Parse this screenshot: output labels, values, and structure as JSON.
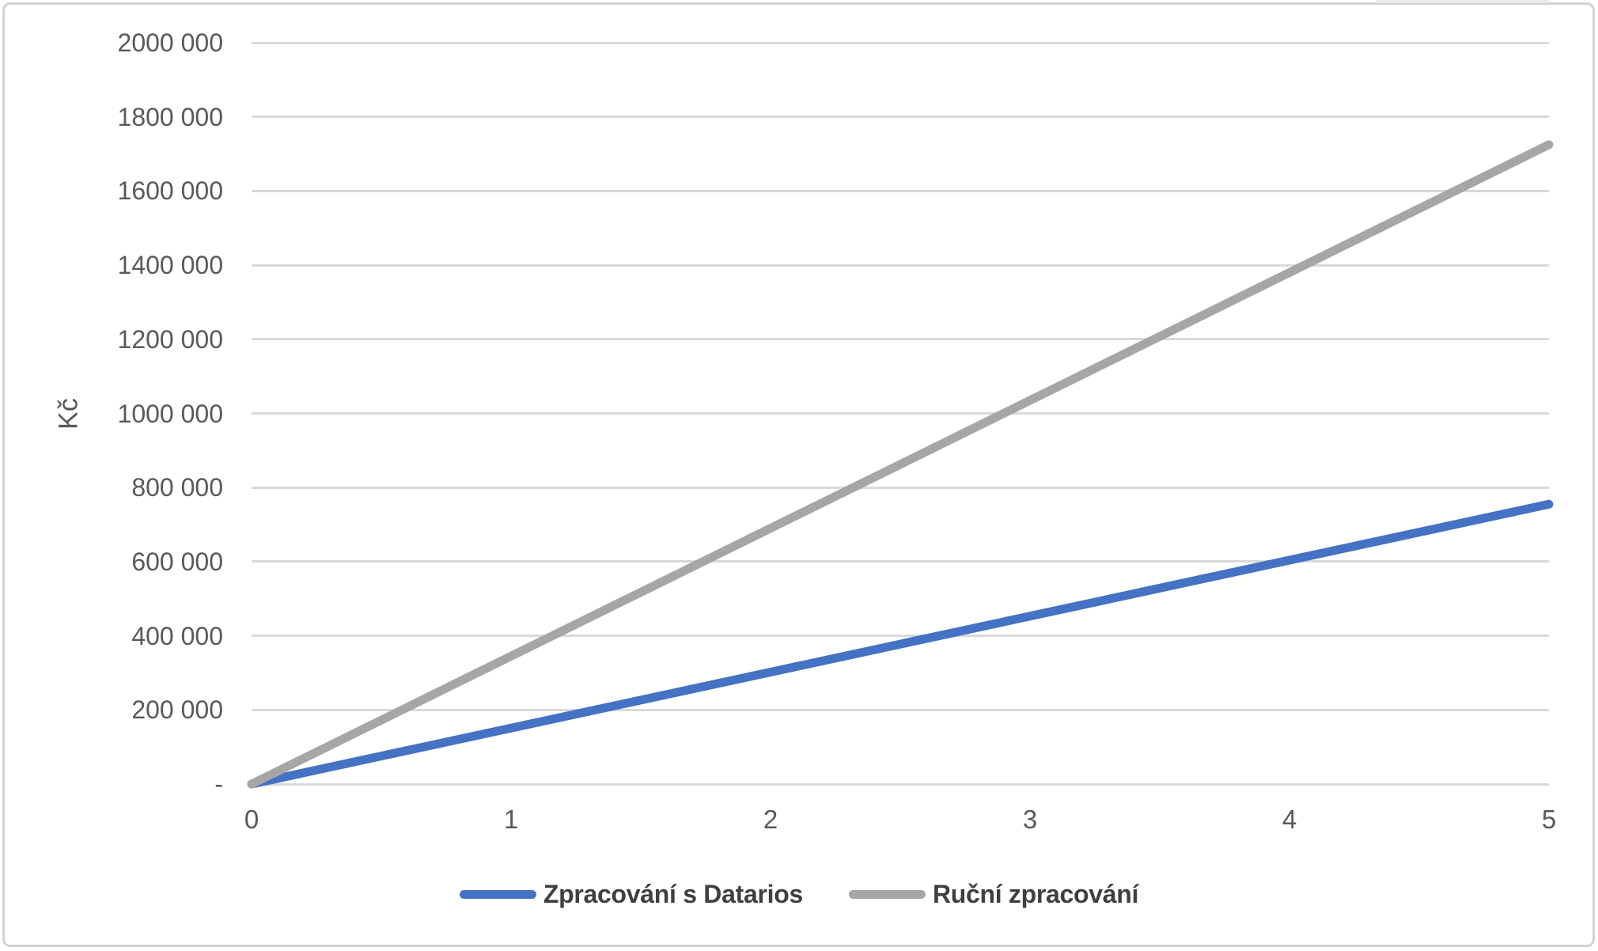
{
  "chart_data": {
    "type": "line",
    "title": "",
    "xlabel": "",
    "ylabel": "Kč",
    "xlim": [
      0,
      5
    ],
    "ylim": [
      0,
      2000000
    ],
    "grid": "horizontal-only",
    "legend_position": "bottom-center",
    "x": [
      0,
      1,
      2,
      3,
      4,
      5
    ],
    "series": [
      {
        "name": "Zpracování s Datarios",
        "color": "#4472C4",
        "values": [
          0,
          151000,
          302000,
          453000,
          604000,
          755000
        ]
      },
      {
        "name": "Ruční zpracování",
        "color": "#A6A6A6",
        "values": [
          0,
          345000,
          690000,
          1035000,
          1380000,
          1725000
        ]
      }
    ],
    "y_ticks": [
      {
        "value": 0,
        "label": "-"
      },
      {
        "value": 200000,
        "label": "200 000"
      },
      {
        "value": 400000,
        "label": "400 000"
      },
      {
        "value": 600000,
        "label": "600 000"
      },
      {
        "value": 800000,
        "label": "800 000"
      },
      {
        "value": 1000000,
        "label": "1000 000"
      },
      {
        "value": 1200000,
        "label": "1200 000"
      },
      {
        "value": 1400000,
        "label": "1400 000"
      },
      {
        "value": 1600000,
        "label": "1600 000"
      },
      {
        "value": 1800000,
        "label": "1800 000"
      },
      {
        "value": 2000000,
        "label": "2000 000"
      }
    ],
    "x_ticks": [
      {
        "value": 0,
        "label": "0"
      },
      {
        "value": 1,
        "label": "1"
      },
      {
        "value": 2,
        "label": "2"
      },
      {
        "value": 3,
        "label": "3"
      },
      {
        "value": 4,
        "label": "4"
      },
      {
        "value": 5,
        "label": "5"
      }
    ],
    "colors": {
      "gridline": "#D9D9D9",
      "axis_text": "#595959",
      "legend_text": "#3F3F3F",
      "frame_border": "#D2D2D2",
      "background": "#FFFFFF"
    }
  }
}
